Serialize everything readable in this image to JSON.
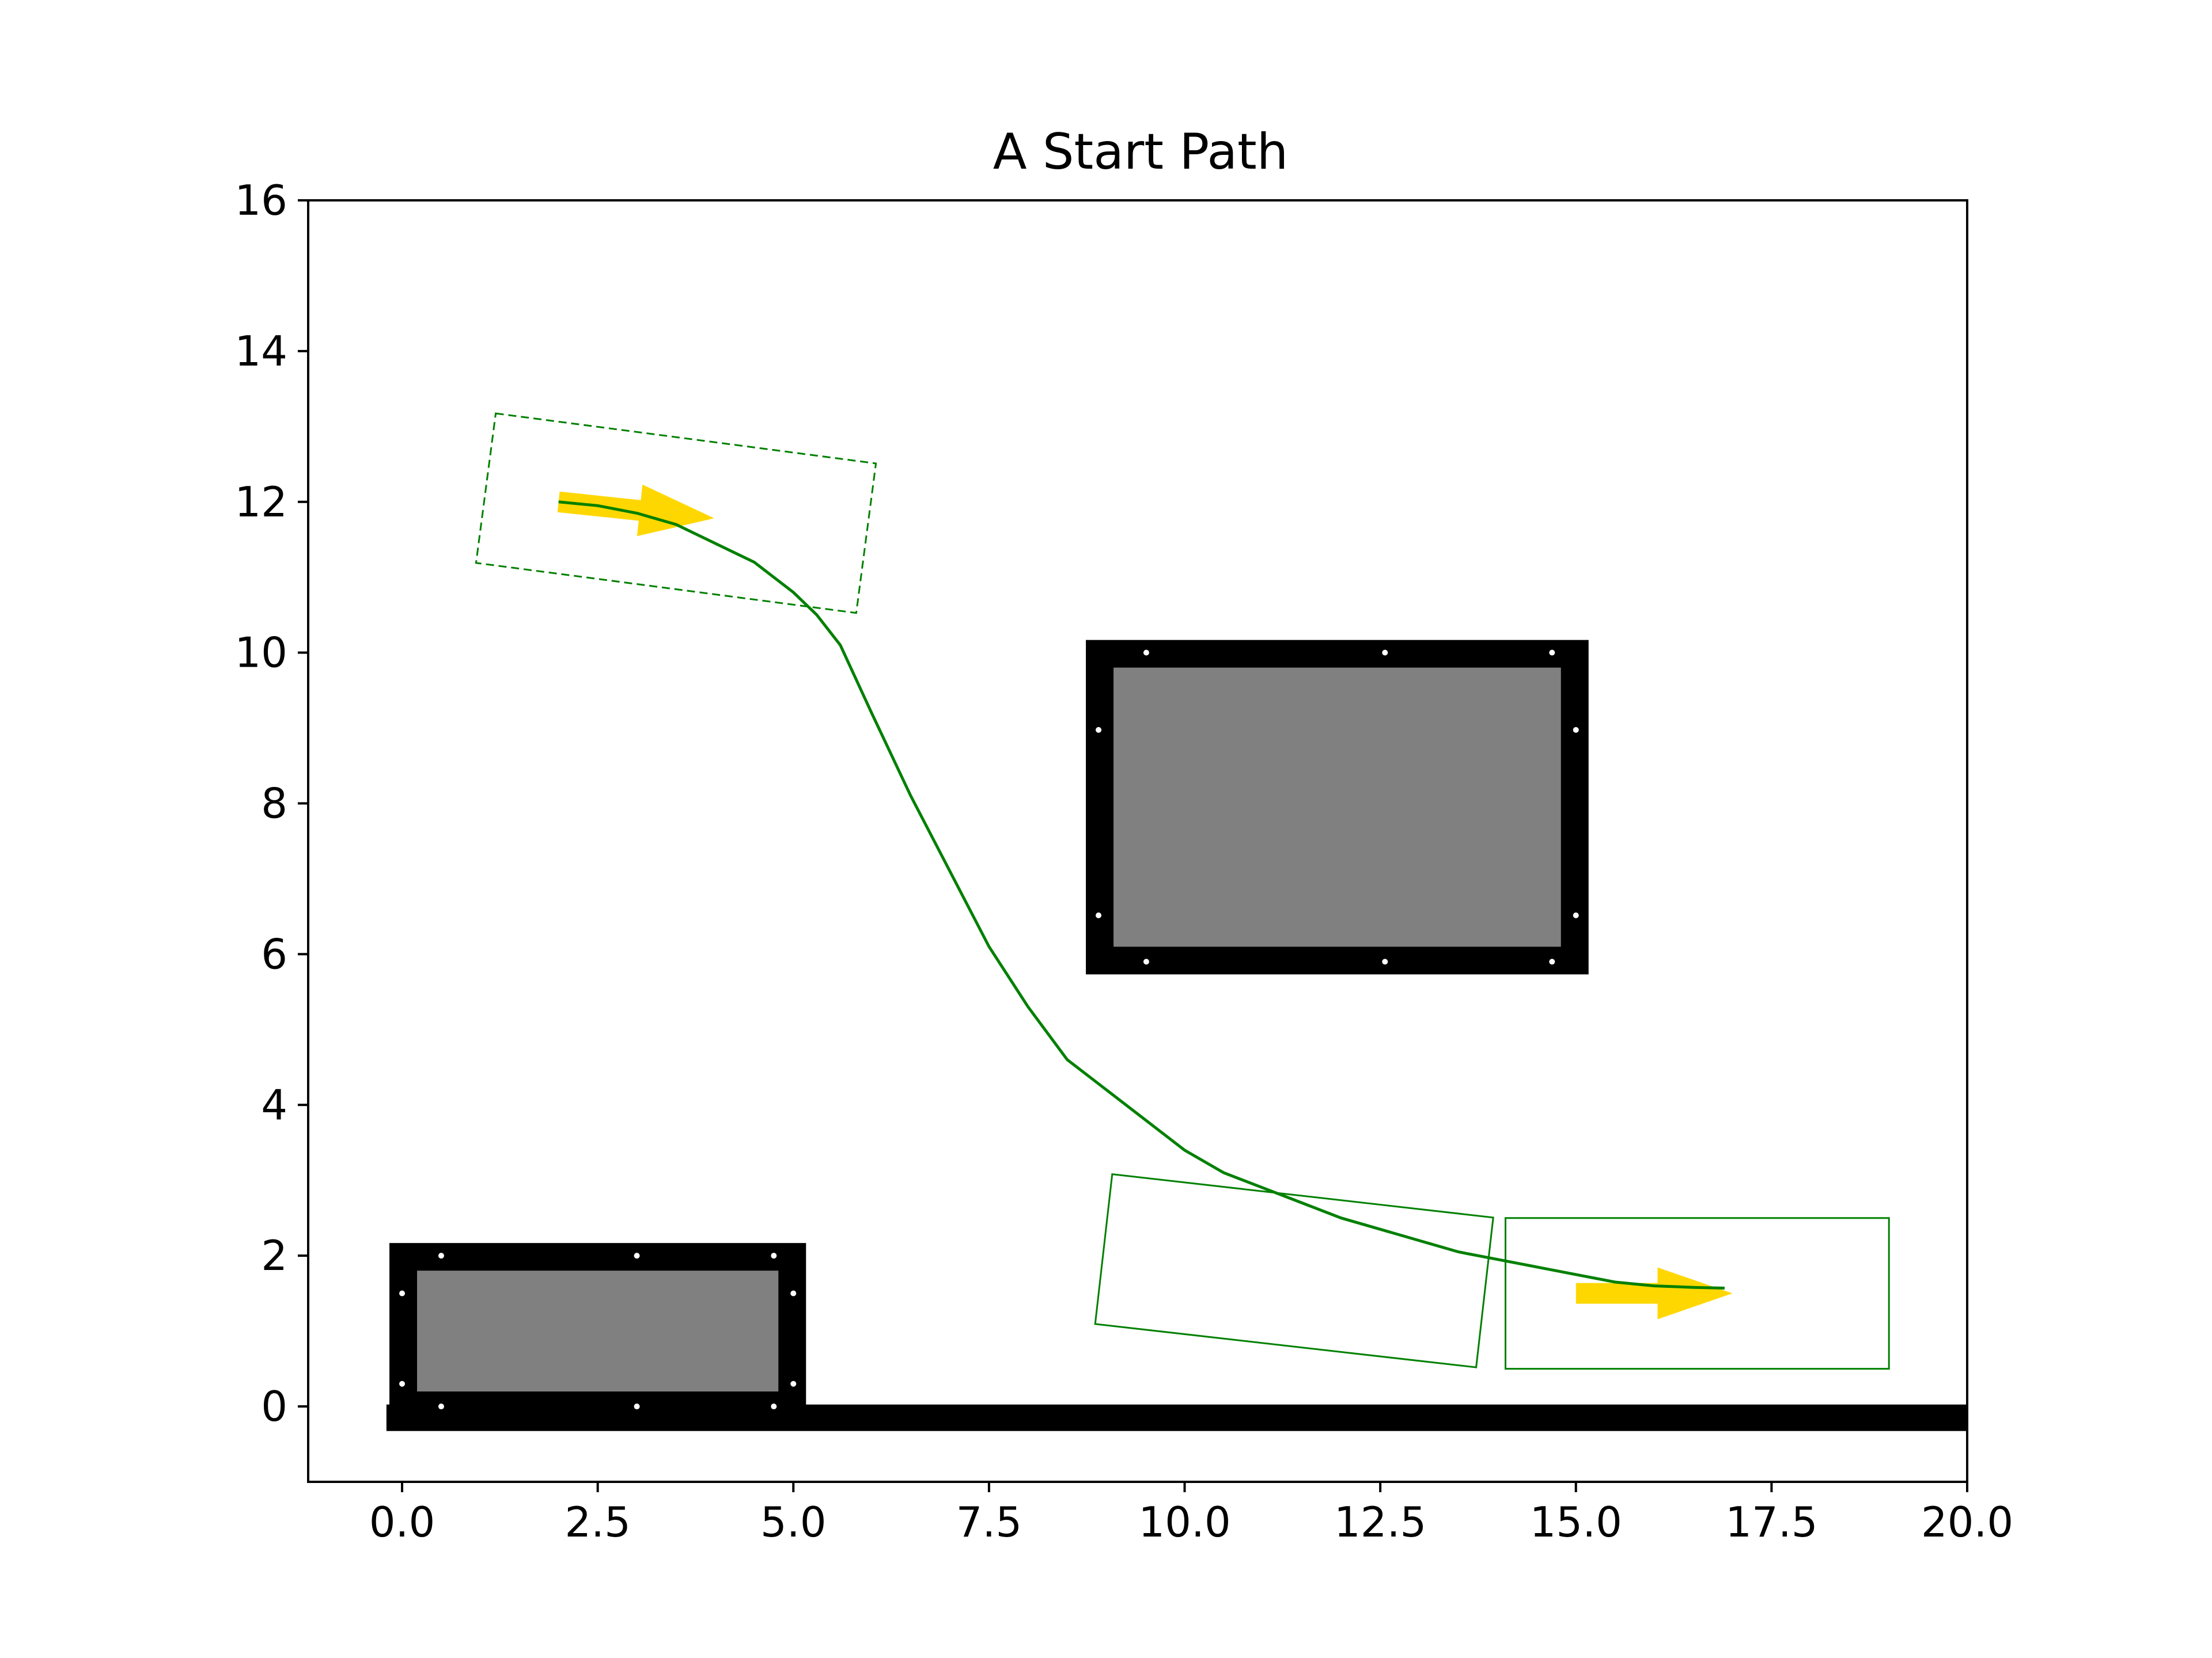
{
  "chart_data": {
    "type": "line",
    "title": "A Start Path",
    "xlabel": "",
    "ylabel": "",
    "xlim": [
      -1.2,
      20
    ],
    "ylim": [
      -1,
      16
    ],
    "x_ticks": [
      "0.0",
      "2.5",
      "5.0",
      "7.5",
      "10.0",
      "12.5",
      "15.0",
      "17.5",
      "20.0"
    ],
    "y_ticks": [
      "0",
      "2",
      "4",
      "6",
      "8",
      "10",
      "12",
      "14",
      "16"
    ],
    "grid": false,
    "legend": "none",
    "colors": {
      "path": "#008000",
      "obstacle_fill": "#808080",
      "obstacle_marker": "#000000",
      "arrow": "#FFD700",
      "vehicle_box": "#008000"
    },
    "path": {
      "x": [
        2.0,
        2.5,
        3.0,
        3.5,
        4.0,
        4.5,
        5.0,
        5.3,
        5.6,
        6.0,
        6.5,
        7.0,
        7.5,
        8.0,
        8.5,
        9.0,
        9.5,
        10.0,
        10.5,
        11.0,
        11.5,
        12.0,
        12.5,
        13.0,
        13.5,
        14.0,
        14.5,
        15.0,
        15.5,
        16.0,
        16.5,
        16.9
      ],
      "y": [
        12.0,
        11.95,
        11.85,
        11.7,
        11.45,
        11.2,
        10.8,
        10.5,
        10.1,
        9.2,
        8.1,
        7.1,
        6.1,
        5.3,
        4.6,
        4.2,
        3.8,
        3.4,
        3.1,
        2.9,
        2.7,
        2.5,
        2.35,
        2.2,
        2.05,
        1.95,
        1.85,
        1.75,
        1.65,
        1.6,
        1.58,
        1.57
      ]
    },
    "obstacles": [
      {
        "x0": 0.0,
        "y0": 0.0,
        "x1": 5.0,
        "y1": 2.0
      },
      {
        "x0": 8.9,
        "y0": 5.9,
        "x1": 15.0,
        "y1": 10.0
      }
    ],
    "boundary": {
      "x0": -0.2,
      "x1": 20.0,
      "y": -0.15
    },
    "start": {
      "x": 2.0,
      "y": 12.0,
      "heading_deg": -6
    },
    "goal": {
      "x": 15.0,
      "y": 1.5,
      "heading_deg": 0
    },
    "vehicle_boxes": [
      {
        "cx": 3.5,
        "cy": 11.85,
        "length": 4.9,
        "width": 2.0,
        "heading_deg": -7.5,
        "dashed": true
      },
      {
        "cx": 11.4,
        "cy": 1.8,
        "length": 4.9,
        "width": 2.0,
        "heading_deg": -6.5,
        "dashed": false
      },
      {
        "cx": 16.55,
        "cy": 1.5,
        "length": 4.9,
        "width": 2.0,
        "heading_deg": 0,
        "dashed": false
      }
    ]
  }
}
